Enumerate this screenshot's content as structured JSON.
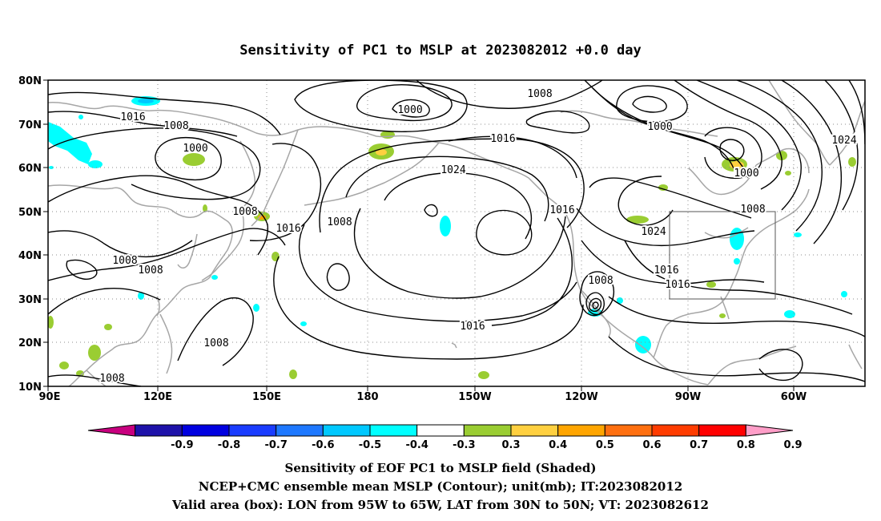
{
  "title": "Sensitivity of PC1 to MSLP at 2023082012 +0.0 day",
  "map": {
    "lon_range": [
      "90E",
      "45W"
    ],
    "lat_range": [
      "10N",
      "80N"
    ],
    "lat_ticks": [
      "10N",
      "20N",
      "30N",
      "40N",
      "50N",
      "60N",
      "70N",
      "80N"
    ],
    "lon_ticks": [
      "90E",
      "120E",
      "150E",
      "180",
      "150W",
      "120W",
      "90W",
      "60W"
    ],
    "valid_box": {
      "lon": [
        "95W",
        "65W"
      ],
      "lat": [
        "30N",
        "50N"
      ]
    },
    "gridlines": "dotted",
    "coastline_color": "#a6a6a6",
    "contour_color": "#000000",
    "contour_labels": [
      "1016",
      "1008",
      "1000",
      "1008",
      "1008",
      "1008",
      "1000",
      "1008",
      "1008",
      "1016",
      "1008",
      "1000",
      "1016",
      "1024",
      "1000",
      "1000",
      "1024",
      "1016",
      "1008",
      "1024",
      "1016",
      "1016",
      "1008",
      "1016",
      "1008"
    ]
  },
  "colorbar": {
    "labels": [
      "-0.9",
      "-0.8",
      "-0.7",
      "-0.6",
      "-0.5",
      "-0.4",
      "-0.3",
      "0.3",
      "0.4",
      "0.5",
      "0.6",
      "0.7",
      "0.8",
      "0.9"
    ],
    "colors": [
      "#c8007f",
      "#1e12a9",
      "#0000e0",
      "#1a3cff",
      "#1e78ff",
      "#00c8ff",
      "#00ffff",
      "#ffffff",
      "#9acd32",
      "#ffd040",
      "#ffa500",
      "#ff7010",
      "#ff3c00",
      "#ff0000",
      "#ff9ec8"
    ]
  },
  "captions": [
    "Sensitivity of EOF PC1 to MSLP field (Shaded)",
    "NCEP+CMC ensemble mean MSLP (Contour); unit(mb); IT:2023082012",
    "Valid area (box): LON from 95W to 65W, LAT from 30N to 50N; VT: 2023082612"
  ]
}
